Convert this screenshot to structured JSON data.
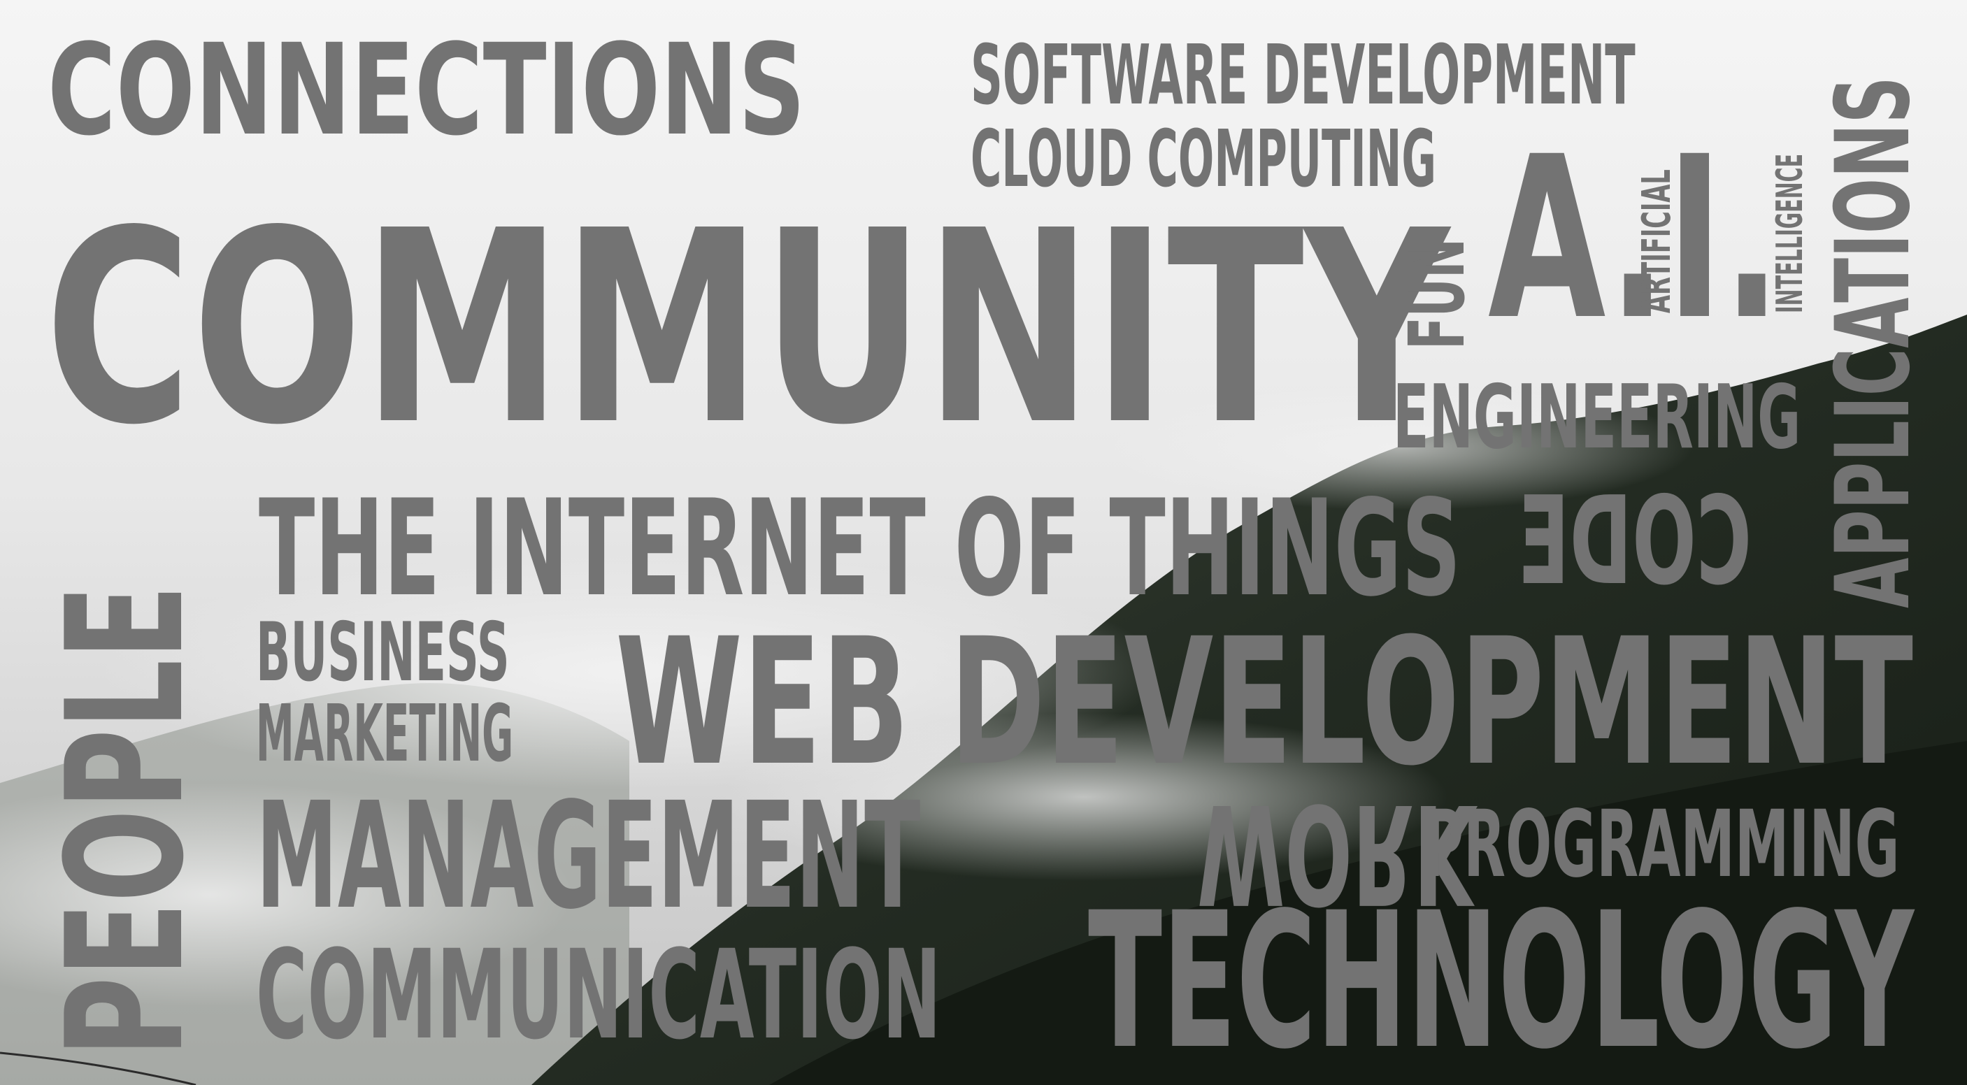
{
  "words": {
    "connections": "CONNECTIONS",
    "software_development": "SOFTWARE DEVELOPMENT",
    "cloud_computing": "CLOUD COMPUTING",
    "community": "COMMUNITY",
    "fun": "FUN",
    "ai": "A.I.",
    "artificial": "ARTIFICIAL",
    "intelligence": "INTELLIGENCE",
    "applications": "APPLICATIONS",
    "engineering": "ENGINEERING",
    "people": "PEOPLE",
    "internet_of_things": "THE INTERNET OF THINGS",
    "code": "CODE",
    "business": "BUSINESS",
    "marketing": "MARKETING",
    "web_development": "WEB DEVELOPMENT",
    "management": "MANAGEMENT",
    "work": "WORK",
    "programming": "PROGRAMMING",
    "communication": "COMMUNICATION",
    "technology": "TECHNOLOGY"
  },
  "colors": {
    "word_gray": "#737373",
    "forest_dark": "#1d241c",
    "fog": "#e9e9e9"
  }
}
